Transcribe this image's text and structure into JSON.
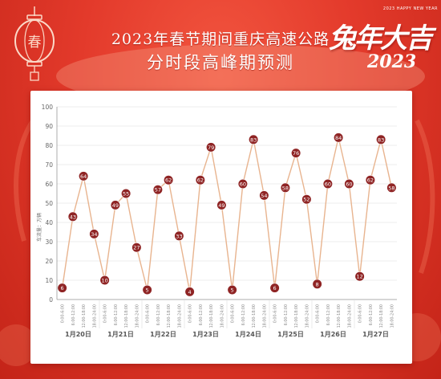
{
  "header": {
    "title_line1": "2023年春节期间重庆高速公路",
    "title_line2": "分时段高峰期预测",
    "lantern_char": "春",
    "decoration_small": "2023 HAPPY NEW YEAR",
    "decoration_big": "兔年大吉",
    "decoration_year": "2023"
  },
  "colors": {
    "line": "#e8b48f",
    "marker": "#8f2424",
    "marker_text": "#ffffff",
    "gridline": "#e6e6e6",
    "background": "#e33a2b"
  },
  "chart_data": {
    "type": "line",
    "title": "",
    "ylabel": "车流量：万辆",
    "ylim": [
      0,
      100
    ],
    "yticks": [
      0,
      10,
      20,
      30,
      40,
      50,
      60,
      70,
      80,
      90,
      100
    ],
    "grid": true,
    "time_slots": [
      "0:00-6:00",
      "6:00-12:00",
      "12:00-18:00",
      "18:00-24:00"
    ],
    "days": [
      "1月20日",
      "1月21日",
      "1月22日",
      "1月23日",
      "1月24日",
      "1月25日",
      "1月26日",
      "1月27日"
    ],
    "series": [
      {
        "values": [
          6,
          43,
          64,
          34,
          10,
          49,
          55,
          27,
          5,
          57,
          62,
          33,
          4,
          62,
          79,
          49,
          5,
          60,
          83,
          54,
          6,
          58,
          76,
          52,
          8,
          60,
          84,
          60,
          12,
          62,
          83,
          58
        ]
      }
    ]
  }
}
